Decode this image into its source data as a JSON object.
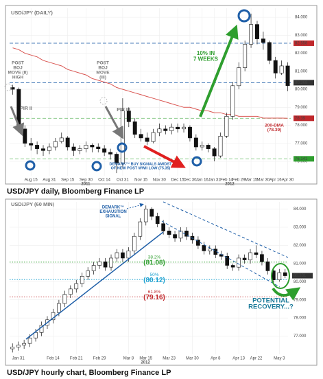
{
  "captions": [
    "USD/JPY daily, Bloomberg Finance LP",
    "USD/JPY hourly chart, Bloomberg Finance LP"
  ],
  "chart_data": [
    {
      "type": "candlestick",
      "title": "USD/JPY (DAILY)",
      "categories": [
        null,
        null,
        null,
        "Aug 15",
        null,
        null,
        "Aug 31",
        null,
        null,
        "Sep 15",
        null,
        null,
        "Sep 30",
        null,
        null,
        "Oct 14",
        null,
        null,
        "Oct 31",
        null,
        null,
        "Nov 15",
        null,
        null,
        "Nov 30",
        null,
        null,
        "Dec 15",
        null,
        "Dec 30",
        null,
        "Jan 16",
        null,
        "Jan 31",
        null,
        "Feb 14",
        null,
        "Feb 29",
        null,
        "Mar 15",
        null,
        "Mar 30",
        null,
        "Apr 16",
        null,
        "Apr 30"
      ],
      "ohlc": [
        [
          80.1,
          80.25,
          79.7,
          80.0
        ],
        [
          80.0,
          80.1,
          77.6,
          77.8
        ],
        [
          77.8,
          78.0,
          76.8,
          77.0
        ],
        [
          77.0,
          77.3,
          76.6,
          76.9
        ],
        [
          76.9,
          77.1,
          76.4,
          76.7
        ],
        [
          76.7,
          76.9,
          76.3,
          76.6
        ],
        [
          76.6,
          77.0,
          76.4,
          76.8
        ],
        [
          76.8,
          77.3,
          76.6,
          77.1
        ],
        [
          77.1,
          77.6,
          77.0,
          77.3
        ],
        [
          77.3,
          77.4,
          76.6,
          76.8
        ],
        [
          76.8,
          77.0,
          76.3,
          76.6
        ],
        [
          76.6,
          76.9,
          76.4,
          76.7
        ],
        [
          76.7,
          77.1,
          76.5,
          76.9
        ],
        [
          76.9,
          77.0,
          76.5,
          76.8
        ],
        [
          76.8,
          77.0,
          76.5,
          76.7
        ],
        [
          76.7,
          76.9,
          76.3,
          76.5
        ],
        [
          76.5,
          76.7,
          76.1,
          76.4
        ],
        [
          76.4,
          76.5,
          75.35,
          75.9
        ],
        [
          75.9,
          79.5,
          75.6,
          78.8
        ],
        [
          78.8,
          79.0,
          77.9,
          78.2
        ],
        [
          78.2,
          78.4,
          77.3,
          77.5
        ],
        [
          77.5,
          77.8,
          77.1,
          77.3
        ],
        [
          77.3,
          77.6,
          76.9,
          77.1
        ],
        [
          77.1,
          77.8,
          77.0,
          77.6
        ],
        [
          77.6,
          78.1,
          77.4,
          77.8
        ],
        [
          77.8,
          78.0,
          77.5,
          77.7
        ],
        [
          77.7,
          78.1,
          77.5,
          77.9
        ],
        [
          77.9,
          78.1,
          77.6,
          77.8
        ],
        [
          77.8,
          78.1,
          77.6,
          77.9
        ],
        [
          77.9,
          78.0,
          77.1,
          77.3
        ],
        [
          77.3,
          77.5,
          76.6,
          76.8
        ],
        [
          76.8,
          77.1,
          76.6,
          76.9
        ],
        [
          76.9,
          77.0,
          76.5,
          76.7
        ],
        [
          76.7,
          76.8,
          76.0,
          76.3
        ],
        [
          76.3,
          77.6,
          76.2,
          77.4
        ],
        [
          77.4,
          78.7,
          77.3,
          78.5
        ],
        [
          78.5,
          80.4,
          78.3,
          80.2
        ],
        [
          80.2,
          81.5,
          80.0,
          81.2
        ],
        [
          81.2,
          82.7,
          81.0,
          82.5
        ],
        [
          82.5,
          84.2,
          82.3,
          83.6
        ],
        [
          83.6,
          83.8,
          82.5,
          82.8
        ],
        [
          82.8,
          83.2,
          82.2,
          82.6
        ],
        [
          82.6,
          82.7,
          81.4,
          81.6
        ],
        [
          81.6,
          81.8,
          80.6,
          80.9
        ],
        [
          80.9,
          81.6,
          80.8,
          81.3
        ],
        [
          81.3,
          81.5,
          79.9,
          80.2
        ]
      ],
      "dma": [
        82.3,
        82.2,
        82.0,
        81.9,
        81.8,
        81.6,
        81.5,
        81.4,
        81.3,
        81.1,
        81.0,
        80.9,
        80.8,
        80.6,
        80.5,
        80.4,
        80.3,
        80.1,
        80.0,
        79.9,
        79.8,
        79.7,
        79.6,
        79.5,
        79.4,
        79.3,
        79.2,
        79.1,
        79.0,
        79.0,
        78.9,
        78.8,
        78.8,
        78.7,
        78.7,
        78.6,
        78.6,
        78.5,
        78.5,
        78.5,
        78.5,
        78.4,
        78.4,
        78.4,
        78.4,
        78.39
      ],
      "dma_color": "#d9534f",
      "ylim": [
        75.2,
        84.5
      ],
      "yticks": [
        {
          "value": 76,
          "label": "76.000"
        },
        {
          "value": 77,
          "label": "77.000"
        },
        {
          "value": 78,
          "label": "78.000"
        },
        {
          "value": 79,
          "label": "79.000"
        },
        {
          "value": 80,
          "label": "80.000"
        },
        {
          "value": 81,
          "label": "81.000"
        },
        {
          "value": 82,
          "label": "82.000"
        },
        {
          "value": 83,
          "label": "83.000"
        },
        {
          "value": 84,
          "label": "84.000"
        }
      ],
      "grid": true,
      "levels": [
        {
          "value": 82.558,
          "label": "82.558",
          "color": "#c0282c",
          "line": "#1f5fa8"
        },
        {
          "value": 80.368,
          "label": "80.368",
          "color": "#333",
          "line": "#1f5fa8"
        },
        {
          "value": 78.39,
          "label": "78.39",
          "color": "#c0282c",
          "line": "#7cc47c"
        },
        {
          "value": 76.141,
          "label": "76.141",
          "color": "#2e9e2e",
          "line": "#7cc47c"
        }
      ],
      "annotations": [
        {
          "lines": [
            "POST",
            "BOJ",
            "MOVE (II)",
            "HIGH"
          ],
          "color": "#777"
        },
        {
          "lines": [
            "PIR II"
          ],
          "color": "#777"
        },
        {
          "lines": [
            "POST",
            "BOJ",
            "MOVE",
            "(III)"
          ],
          "color": "#777"
        },
        {
          "lines": [
            "PIR III"
          ],
          "color": "#777"
        },
        {
          "lines": [
            "DEMARK™ BUY SIGNALS AMIDST",
            "OF NEW POST WWII LOW (75.35)"
          ],
          "color": "#1f5fa8"
        },
        {
          "lines": [
            "10% IN",
            "7 WEEKS"
          ],
          "color": "#2e9e2e"
        },
        {
          "lines": [
            "200-DMA",
            "(78.39)"
          ],
          "color": "#c0282c"
        },
        {
          "lines": [
            "2011"
          ],
          "color": "#555"
        },
        {
          "lines": [
            "2012"
          ],
          "color": "#555"
        }
      ]
    },
    {
      "type": "candlestick",
      "title": "USD/JPY (60 MIN)",
      "categories": [
        null,
        "Jan 31",
        null,
        null,
        null,
        null,
        null,
        "Feb 14",
        null,
        null,
        null,
        "Feb 21",
        null,
        null,
        null,
        "Feb 29",
        null,
        null,
        null,
        null,
        "Mar 8",
        null,
        null,
        "Mar 15",
        null,
        null,
        null,
        "Mar 23",
        null,
        null,
        null,
        "Mar 30",
        null,
        null,
        null,
        "Apr 8",
        null,
        null,
        null,
        "Apr 13",
        null,
        null,
        "Apr 22",
        null,
        null,
        null,
        "May 3",
        null
      ],
      "ohlc": [
        [
          76.3,
          76.6,
          76.1,
          76.4
        ],
        [
          76.4,
          76.7,
          76.2,
          76.5
        ],
        [
          76.5,
          76.8,
          76.3,
          76.6
        ],
        [
          76.6,
          77.1,
          76.4,
          76.9
        ],
        [
          76.9,
          77.4,
          76.7,
          77.2
        ],
        [
          77.2,
          77.8,
          77.0,
          77.6
        ],
        [
          77.6,
          78.1,
          77.4,
          77.9
        ],
        [
          77.9,
          78.5,
          77.7,
          78.3
        ],
        [
          78.3,
          79.0,
          78.1,
          78.8
        ],
        [
          78.8,
          79.5,
          78.6,
          79.3
        ],
        [
          79.3,
          79.8,
          79.1,
          79.6
        ],
        [
          79.6,
          80.1,
          79.4,
          79.9
        ],
        [
          79.9,
          80.5,
          79.7,
          80.3
        ],
        [
          80.3,
          80.8,
          80.1,
          80.6
        ],
        [
          80.6,
          81.1,
          80.4,
          80.9
        ],
        [
          80.9,
          81.3,
          80.7,
          81.1
        ],
        [
          81.1,
          81.3,
          80.6,
          80.8
        ],
        [
          80.8,
          81.5,
          80.6,
          81.3
        ],
        [
          81.3,
          81.8,
          81.1,
          81.6
        ],
        [
          81.6,
          81.8,
          81.1,
          81.3
        ],
        [
          81.3,
          81.9,
          81.1,
          81.7
        ],
        [
          81.7,
          82.7,
          81.5,
          82.5
        ],
        [
          82.5,
          83.5,
          82.3,
          83.3
        ],
        [
          83.3,
          84.2,
          83.1,
          84.0
        ],
        [
          84.0,
          84.1,
          83.4,
          83.6
        ],
        [
          83.6,
          83.8,
          83.0,
          83.2
        ],
        [
          83.2,
          83.4,
          82.6,
          82.8
        ],
        [
          82.8,
          83.0,
          82.4,
          82.6
        ],
        [
          82.6,
          82.8,
          82.2,
          82.4
        ],
        [
          82.4,
          83.0,
          82.2,
          82.8
        ],
        [
          82.8,
          83.0,
          82.3,
          82.5
        ],
        [
          82.5,
          82.7,
          82.1,
          82.3
        ],
        [
          82.3,
          82.5,
          81.8,
          82.0
        ],
        [
          82.0,
          82.2,
          81.5,
          81.7
        ],
        [
          81.7,
          82.0,
          81.5,
          81.8
        ],
        [
          81.8,
          82.0,
          81.3,
          81.5
        ],
        [
          81.5,
          81.7,
          81.2,
          81.4
        ],
        [
          81.4,
          81.6,
          80.7,
          80.9
        ],
        [
          80.9,
          81.0,
          80.6,
          80.8
        ],
        [
          80.8,
          81.5,
          80.6,
          81.3
        ],
        [
          81.3,
          81.5,
          81.0,
          81.2
        ],
        [
          81.2,
          81.8,
          81.0,
          81.6
        ],
        [
          81.6,
          82.0,
          81.3,
          81.5
        ],
        [
          81.5,
          81.7,
          80.9,
          81.1
        ],
        [
          81.1,
          81.3,
          80.4,
          80.6
        ],
        [
          80.6,
          80.8,
          79.9,
          80.1
        ],
        [
          80.1,
          80.7,
          80.0,
          80.5
        ],
        [
          80.5,
          80.7,
          80.2,
          80.33
        ]
      ],
      "ylim": [
        76.0,
        84.4
      ],
      "yticks": [
        {
          "value": 77,
          "label": "77.000"
        },
        {
          "value": 78,
          "label": "78.000"
        },
        {
          "value": 79,
          "label": "79.000"
        },
        {
          "value": 80,
          "label": "80.000"
        },
        {
          "value": 81,
          "label": "81.000"
        },
        {
          "value": 82,
          "label": "82.000"
        },
        {
          "value": 83,
          "label": "83.000"
        },
        {
          "value": 84,
          "label": "84.000"
        }
      ],
      "grid": true,
      "levels": [
        {
          "value": 80.331,
          "label": "80.331",
          "color": "#333",
          "line": null
        }
      ],
      "fib": [
        {
          "value": 81.08,
          "pct": "38.2%",
          "label": "(81.08)",
          "color": "#2e9e2e"
        },
        {
          "value": 80.12,
          "pct": "50%",
          "label": "(80.12)",
          "color": "#1aa0d0"
        },
        {
          "value": 79.16,
          "pct": "61.8%",
          "label": "(79.16)",
          "color": "#c0282c"
        }
      ],
      "annotations": [
        {
          "lines": [
            "DEMARK™",
            "EXHAUSTION",
            "SIGNAL"
          ],
          "color": "#1f5fa8"
        },
        {
          "lines": [
            "POTENTIAL",
            "RECOVERY...?"
          ],
          "color": "#1a7a9a"
        },
        {
          "lines": [
            "2012"
          ],
          "color": "#555"
        }
      ]
    }
  ]
}
